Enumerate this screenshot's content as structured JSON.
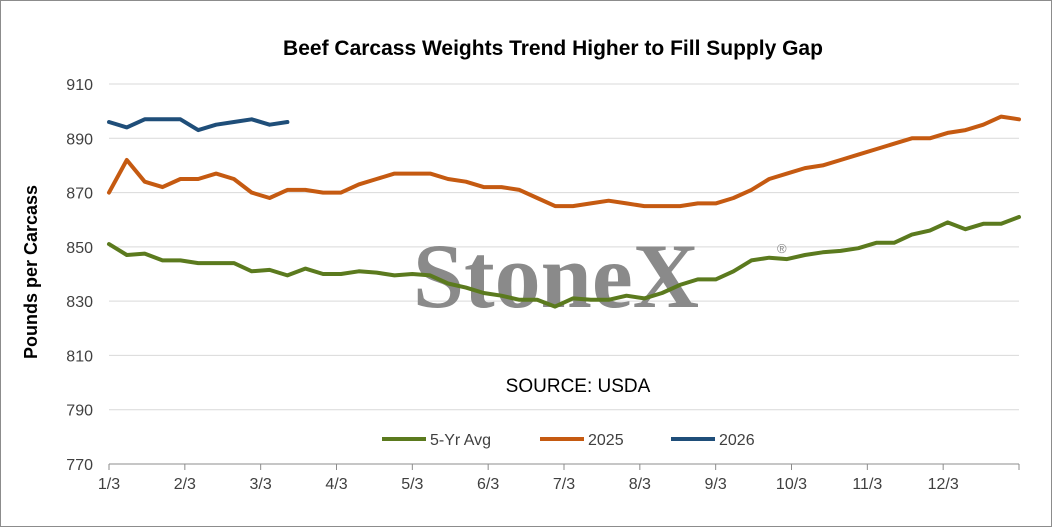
{
  "chart_data": {
    "type": "line",
    "title": "Beef Carcass Weights Trend Higher to Fill Supply Gap",
    "xlabel": "",
    "ylabel": "Pounds per Carcass",
    "ylim": [
      770,
      910
    ],
    "yticks": [
      770,
      790,
      810,
      830,
      850,
      870,
      890,
      910
    ],
    "x_tick_labels": [
      "1/3",
      "2/3",
      "3/3",
      "4/3",
      "5/3",
      "6/3",
      "7/3",
      "8/3",
      "9/3",
      "10/3",
      "11/3",
      "12/3"
    ],
    "weeks_per_year": 52,
    "grid": "horizontal",
    "legend_position": "bottom",
    "annotation": "SOURCE: USDA",
    "watermark": "StoneX",
    "series": [
      {
        "name": "5-Yr Avg",
        "color": "#5b7a1e",
        "values": [
          851,
          847,
          847.5,
          845,
          845,
          844,
          844,
          844,
          841,
          841.5,
          839.5,
          842,
          840,
          840,
          841,
          840.5,
          839.5,
          840,
          839.5,
          836.5,
          835,
          833,
          832,
          830.5,
          830.5,
          828,
          831,
          830.5,
          830.5,
          832,
          831,
          833,
          836,
          838,
          838,
          841,
          845,
          846,
          845.5,
          847,
          848,
          848.5,
          849.5,
          851.5,
          851.5,
          854.5,
          856,
          859,
          856.5,
          858.5,
          858.5,
          861
        ]
      },
      {
        "name": "2025",
        "color": "#c55a11",
        "values": [
          870,
          882,
          874,
          872,
          875,
          875,
          877,
          875,
          870,
          868,
          871,
          871,
          870,
          870,
          873,
          875,
          877,
          877,
          877,
          875,
          874,
          872,
          872,
          871,
          868,
          865,
          865,
          866,
          867,
          866,
          865,
          865,
          865,
          866,
          866,
          868,
          871,
          875,
          877,
          879,
          880,
          882,
          884,
          886,
          888,
          890,
          890,
          892,
          893,
          895,
          898,
          897
        ]
      },
      {
        "name": "2026",
        "color": "#1f4e79",
        "values": [
          896,
          894,
          897,
          897,
          897,
          893,
          895,
          896,
          897,
          895,
          896
        ]
      }
    ]
  }
}
